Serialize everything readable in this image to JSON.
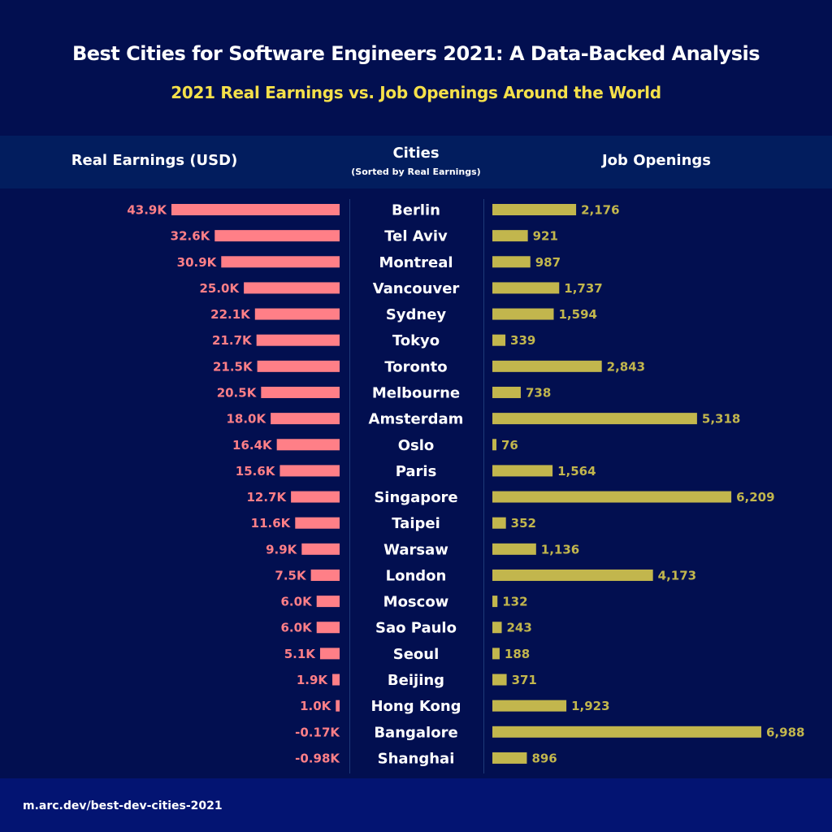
{
  "title": "Best Cities for Software Engineers 2021: A Data-Backed Analysis",
  "subtitle": "2021 Real Earnings vs. Job Openings Around the World",
  "headers": {
    "left": "Real Earnings (USD)",
    "center": "Cities",
    "center_note": "(Sorted by Real Earnings)",
    "right": "Job Openings"
  },
  "footer": "m.arc.dev/best-dev-cities-2021",
  "colors": {
    "background": "#020f50",
    "earnings": "#ff7f87",
    "jobs": "#c2b64d",
    "subtitle": "#f5e04a"
  },
  "chart_data": {
    "type": "bar",
    "orientation": "horizontal-butterfly",
    "categories": [
      "Berlin",
      "Tel Aviv",
      "Montreal",
      "Vancouver",
      "Sydney",
      "Tokyo",
      "Toronto",
      "Melbourne",
      "Amsterdam",
      "Oslo",
      "Paris",
      "Singapore",
      "Taipei",
      "Warsaw",
      "London",
      "Moscow",
      "Sao Paulo",
      "Seoul",
      "Beijing",
      "Hong Kong",
      "Bangalore",
      "Shanghai"
    ],
    "series": [
      {
        "name": "Real Earnings (USD)",
        "unit": "K",
        "values": [
          43.9,
          32.6,
          30.9,
          25.0,
          22.1,
          21.7,
          21.5,
          20.5,
          18.0,
          16.4,
          15.6,
          12.7,
          11.6,
          9.9,
          7.5,
          6.0,
          6.0,
          5.1,
          1.9,
          1.0,
          -0.17,
          -0.98
        ],
        "labels": [
          "43.9K",
          "32.6K",
          "30.9K",
          "25.0K",
          "22.1K",
          "21.7K",
          "21.5K",
          "20.5K",
          "18.0K",
          "16.4K",
          "15.6K",
          "12.7K",
          "11.6K",
          "9.9K",
          "7.5K",
          "6.0K",
          "6.0K",
          "5.1K",
          "1.9K",
          "1.0K",
          "-0.17K",
          "-0.98K"
        ]
      },
      {
        "name": "Job Openings",
        "values": [
          2176,
          921,
          987,
          1737,
          1594,
          339,
          2843,
          738,
          5318,
          76,
          1564,
          6209,
          352,
          1136,
          4173,
          132,
          243,
          188,
          371,
          1923,
          6988,
          896
        ],
        "labels": [
          "2,176",
          "921",
          "987",
          "1,737",
          "1,594",
          "339",
          "2,843",
          "738",
          "5,318",
          "76",
          "1,564",
          "6,209",
          "352",
          "1,136",
          "4,173",
          "132",
          "243",
          "188",
          "371",
          "1,923",
          "6,988",
          "896"
        ]
      }
    ],
    "grid": false,
    "legend": "none"
  }
}
